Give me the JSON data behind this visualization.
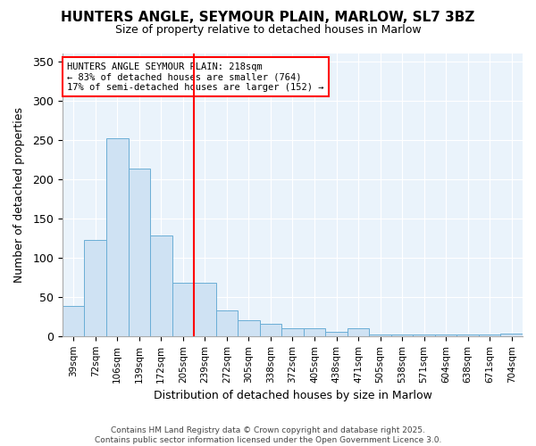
{
  "title_line1": "HUNTERS ANGLE, SEYMOUR PLAIN, MARLOW, SL7 3BZ",
  "title_line2": "Size of property relative to detached houses in Marlow",
  "xlabel": "Distribution of detached houses by size in Marlow",
  "ylabel": "Number of detached properties",
  "bar_labels": [
    "39sqm",
    "72sqm",
    "106sqm",
    "139sqm",
    "172sqm",
    "205sqm",
    "239sqm",
    "272sqm",
    "305sqm",
    "338sqm",
    "372sqm",
    "405sqm",
    "438sqm",
    "471sqm",
    "505sqm",
    "538sqm",
    "571sqm",
    "604sqm",
    "638sqm",
    "671sqm",
    "704sqm"
  ],
  "bar_values": [
    38,
    122,
    252,
    213,
    128,
    68,
    68,
    33,
    20,
    16,
    10,
    10,
    5,
    10,
    2,
    2,
    2,
    2,
    2,
    2,
    3
  ],
  "bar_color": "#cfe2f3",
  "bar_edgecolor": "#6baed6",
  "ylim": [
    0,
    360
  ],
  "yticks": [
    0,
    50,
    100,
    150,
    200,
    250,
    300,
    350
  ],
  "red_line_x": 5.5,
  "annotation_line1": "HUNTERS ANGLE SEYMOUR PLAIN: 218sqm",
  "annotation_line2": "← 83% of detached houses are smaller (764)",
  "annotation_line3": "17% of semi-detached houses are larger (152) →",
  "footnote_line1": "Contains HM Land Registry data © Crown copyright and database right 2025.",
  "footnote_line2": "Contains public sector information licensed under the Open Government Licence 3.0.",
  "fig_facecolor": "#ffffff",
  "plot_facecolor": "#eaf3fb"
}
